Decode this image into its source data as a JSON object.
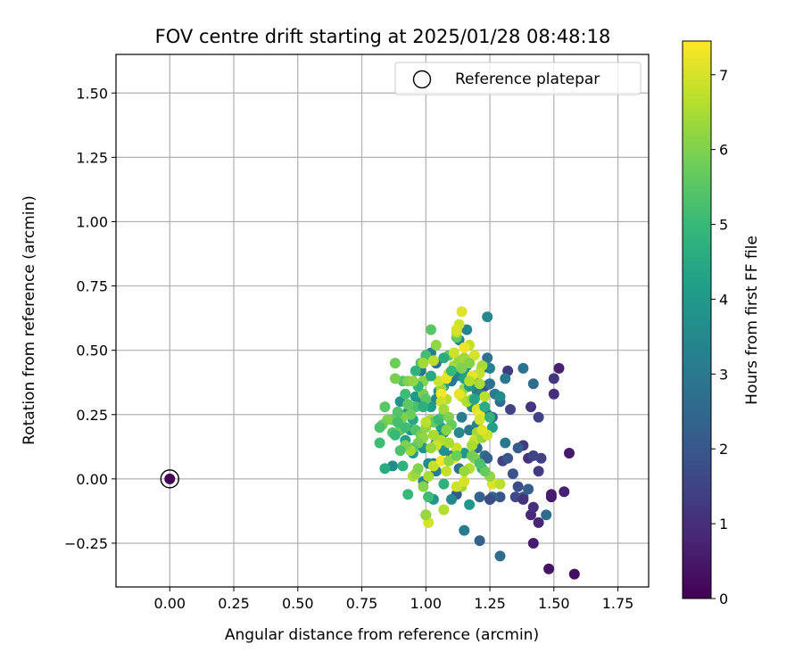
{
  "chart_data": {
    "type": "scatter",
    "title": "FOV centre drift starting at 2025/01/28 08:48:18",
    "xlabel": "Angular distance from reference (arcmin)",
    "ylabel": "Rotation from reference (arcmin)",
    "xlim": [
      -0.21,
      1.87
    ],
    "ylim": [
      -0.42,
      1.65
    ],
    "x_ticks": [
      0.0,
      0.25,
      0.5,
      0.75,
      1.0,
      1.25,
      1.5,
      1.75
    ],
    "x_tick_labels": [
      "0.00",
      "0.25",
      "0.50",
      "0.75",
      "1.00",
      "1.25",
      "1.50",
      "1.75"
    ],
    "y_ticks": [
      -0.25,
      0.0,
      0.25,
      0.5,
      0.75,
      1.0,
      1.25,
      1.5
    ],
    "y_tick_labels": [
      "−0.25",
      "0.00",
      "0.25",
      "0.50",
      "0.75",
      "1.00",
      "1.25",
      "1.50"
    ],
    "grid": true,
    "legend": {
      "placement": "top-right",
      "entries": [
        "Reference platepar"
      ]
    },
    "colorbar": {
      "label": "Hours from first FF file",
      "range": [
        0,
        7.45
      ],
      "ticks": [
        0,
        1,
        2,
        3,
        4,
        5,
        6,
        7
      ],
      "tick_labels": [
        "0",
        "1",
        "2",
        "3",
        "4",
        "5",
        "6",
        "7"
      ],
      "colormap": "viridis"
    },
    "reference_point": {
      "x": 0.0,
      "y": 0.0,
      "hours": 0.0
    },
    "points_note": "x, y in arcmin; c = hours from first FF file",
    "points": [
      [
        1.58,
        -0.37,
        0.3
      ],
      [
        1.48,
        -0.35,
        0.4
      ],
      [
        1.42,
        -0.25,
        0.6
      ],
      [
        1.44,
        -0.17,
        0.8
      ],
      [
        1.41,
        -0.14,
        0.9
      ],
      [
        1.42,
        -0.11,
        1.0
      ],
      [
        1.49,
        -0.07,
        0.5
      ],
      [
        1.49,
        -0.06,
        0.6
      ],
      [
        1.54,
        -0.05,
        0.7
      ],
      [
        1.47,
        -0.14,
        2.6
      ],
      [
        1.56,
        0.1,
        0.5
      ],
      [
        1.52,
        0.43,
        0.7
      ],
      [
        1.5,
        0.39,
        1.2
      ],
      [
        1.5,
        0.33,
        1.0
      ],
      [
        1.44,
        0.24,
        1.5
      ],
      [
        1.41,
        0.28,
        1.2
      ],
      [
        1.45,
        0.08,
        1.4
      ],
      [
        1.44,
        0.03,
        1.3
      ],
      [
        1.4,
        0.08,
        1.1
      ],
      [
        1.38,
        0.13,
        1.3
      ],
      [
        1.42,
        0.09,
        1.5
      ],
      [
        1.42,
        0.37,
        2.6
      ],
      [
        1.38,
        0.43,
        2.8
      ],
      [
        1.32,
        0.42,
        1.3
      ],
      [
        1.33,
        0.27,
        1.5
      ],
      [
        1.29,
        0.3,
        2.6
      ],
      [
        1.31,
        0.39,
        3.0
      ],
      [
        1.3,
        0.07,
        1.5
      ],
      [
        1.32,
        0.08,
        2.0
      ],
      [
        1.34,
        0.02,
        1.9
      ],
      [
        1.36,
        0.12,
        2.2
      ],
      [
        1.31,
        0.14,
        3.0
      ],
      [
        1.35,
        -0.07,
        1.6
      ],
      [
        1.38,
        -0.07,
        2.0
      ],
      [
        1.36,
        -0.03,
        1.8
      ],
      [
        1.38,
        -0.08,
        1.1
      ],
      [
        1.4,
        -0.04,
        2.2
      ],
      [
        1.29,
        -0.07,
        2.0
      ],
      [
        1.26,
        -0.07,
        2.4
      ],
      [
        1.25,
        -0.08,
        2.7
      ],
      [
        1.25,
        -0.08,
        1.7
      ],
      [
        1.21,
        -0.07,
        2.3
      ],
      [
        1.21,
        -0.24,
        2.3
      ],
      [
        1.15,
        -0.2,
        3.1
      ],
      [
        1.29,
        -0.3,
        2.6
      ],
      [
        1.12,
        -0.06,
        2.1
      ],
      [
        1.17,
        -0.1,
        3.9
      ],
      [
        1.1,
        -0.08,
        3.5
      ],
      [
        1.0,
        -0.14,
        3.9
      ],
      [
        1.01,
        -0.07,
        4.1
      ],
      [
        1.03,
        -0.08,
        3.9
      ],
      [
        0.99,
        -0.01,
        3.3
      ],
      [
        1.04,
        0.03,
        3.2
      ],
      [
        1.03,
        0.06,
        2.9
      ],
      [
        1.01,
        0.06,
        3.6
      ],
      [
        1.07,
        0.11,
        3.8
      ],
      [
        1.1,
        0.09,
        3.5
      ],
      [
        1.13,
        0.04,
        2.7
      ],
      [
        1.15,
        0.1,
        4.0
      ],
      [
        1.2,
        0.12,
        2.5
      ],
      [
        1.2,
        0.18,
        2.6
      ],
      [
        1.19,
        0.14,
        3.0
      ],
      [
        1.22,
        0.04,
        4.5
      ],
      [
        1.23,
        0.09,
        2.8
      ],
      [
        1.24,
        0.08,
        2.3
      ],
      [
        1.24,
        0.25,
        2.4
      ],
      [
        1.26,
        0.24,
        2.3
      ],
      [
        1.23,
        0.36,
        2.0
      ],
      [
        1.24,
        0.47,
        2.8
      ],
      [
        1.25,
        0.43,
        3.3
      ],
      [
        1.25,
        0.37,
        2.8
      ],
      [
        1.27,
        0.33,
        3.1
      ],
      [
        1.29,
        0.32,
        3.6
      ],
      [
        1.22,
        0.43,
        2.6
      ],
      [
        1.21,
        0.33,
        2.9
      ],
      [
        1.2,
        0.34,
        3.2
      ],
      [
        1.21,
        0.27,
        3.3
      ],
      [
        1.14,
        0.24,
        3.1
      ],
      [
        1.13,
        0.18,
        3.5
      ],
      [
        1.17,
        0.19,
        3.0
      ],
      [
        1.2,
        0.21,
        3.3
      ],
      [
        1.18,
        0.28,
        3.7
      ],
      [
        1.19,
        0.4,
        3.3
      ],
      [
        1.16,
        0.44,
        3.6
      ],
      [
        1.15,
        0.41,
        3.8
      ],
      [
        1.12,
        0.4,
        3.4
      ],
      [
        1.1,
        0.38,
        3.0
      ],
      [
        1.07,
        0.36,
        4.2
      ],
      [
        1.05,
        0.34,
        3.8
      ],
      [
        1.04,
        0.31,
        3.5
      ],
      [
        1.04,
        0.45,
        2.7
      ],
      [
        1.02,
        0.49,
        3.2
      ],
      [
        0.98,
        0.42,
        3.0
      ],
      [
        0.99,
        0.38,
        3.5
      ],
      [
        0.96,
        0.32,
        4.0
      ],
      [
        0.98,
        0.29,
        3.6
      ],
      [
        1.02,
        0.28,
        4.1
      ],
      [
        1.04,
        0.22,
        3.7
      ],
      [
        1.06,
        0.2,
        4.3
      ],
      [
        1.07,
        0.18,
        3.9
      ],
      [
        1.04,
        0.14,
        3.5
      ],
      [
        0.99,
        0.12,
        3.8
      ],
      [
        0.95,
        0.1,
        4.0
      ],
      [
        0.92,
        0.15,
        4.2
      ],
      [
        0.94,
        0.19,
        3.8
      ],
      [
        0.95,
        0.23,
        4.4
      ],
      [
        0.93,
        0.26,
        4.1
      ],
      [
        0.9,
        0.3,
        3.8
      ],
      [
        0.87,
        0.05,
        3.6
      ],
      [
        0.84,
        0.04,
        4.6
      ],
      [
        0.91,
        0.05,
        4.8
      ],
      [
        0.93,
        -0.06,
        5.0
      ],
      [
        1.01,
        -0.07,
        5.1
      ],
      [
        1.07,
        -0.02,
        4.7
      ],
      [
        1.13,
        0.54,
        3.3
      ],
      [
        1.16,
        0.58,
        3.4
      ],
      [
        1.24,
        0.63,
        3.5
      ],
      [
        1.12,
        0.55,
        5.6
      ],
      [
        1.09,
        0.48,
        5.6
      ],
      [
        1.04,
        0.52,
        6.2
      ],
      [
        1.02,
        0.58,
        5.5
      ],
      [
        1.0,
        0.48,
        5.2
      ],
      [
        0.98,
        0.45,
        5.4
      ],
      [
        0.96,
        0.42,
        4.8
      ],
      [
        0.91,
        0.38,
        5.4
      ],
      [
        0.88,
        0.39,
        5.9
      ],
      [
        0.88,
        0.45,
        5.8
      ],
      [
        0.93,
        0.38,
        6.0
      ],
      [
        0.99,
        0.38,
        6.1
      ],
      [
        0.99,
        0.33,
        5.9
      ],
      [
        1.0,
        0.31,
        5.5
      ],
      [
        0.96,
        0.28,
        5.3
      ],
      [
        0.93,
        0.29,
        5.6
      ],
      [
        0.94,
        0.25,
        5.8
      ],
      [
        0.91,
        0.24,
        6.0
      ],
      [
        0.89,
        0.26,
        5.4
      ],
      [
        0.87,
        0.23,
        5.7
      ],
      [
        0.85,
        0.23,
        6.0
      ],
      [
        0.84,
        0.28,
        5.5
      ],
      [
        0.83,
        0.21,
        5.8
      ],
      [
        0.82,
        0.2,
        5.3
      ],
      [
        0.82,
        0.14,
        5.1
      ],
      [
        0.87,
        0.18,
        5.4
      ],
      [
        0.9,
        0.19,
        5.7
      ],
      [
        0.92,
        0.2,
        5.1
      ],
      [
        0.96,
        0.19,
        5.4
      ],
      [
        0.98,
        0.17,
        5.9
      ],
      [
        1.0,
        0.2,
        6.2
      ],
      [
        1.02,
        0.23,
        6.4
      ],
      [
        1.03,
        0.22,
        5.7
      ],
      [
        1.05,
        0.23,
        5.0
      ],
      [
        1.07,
        0.25,
        5.3
      ],
      [
        1.08,
        0.31,
        6.6
      ],
      [
        1.06,
        0.35,
        6.3
      ],
      [
        1.05,
        0.38,
        6.9
      ],
      [
        1.09,
        0.41,
        6.7
      ],
      [
        1.11,
        0.44,
        6.5
      ],
      [
        1.13,
        0.46,
        6.2
      ],
      [
        1.14,
        0.43,
        6.0
      ],
      [
        1.15,
        0.47,
        6.4
      ],
      [
        1.17,
        0.52,
        6.8
      ],
      [
        1.19,
        0.48,
        7.0
      ],
      [
        1.17,
        0.45,
        6.1
      ],
      [
        1.15,
        0.35,
        6.3
      ],
      [
        1.14,
        0.32,
        6.8
      ],
      [
        1.13,
        0.33,
        7.2
      ],
      [
        1.16,
        0.3,
        6.6
      ],
      [
        1.18,
        0.31,
        6.2
      ],
      [
        1.2,
        0.27,
        7.1
      ],
      [
        1.21,
        0.25,
        7.3
      ],
      [
        1.21,
        0.23,
        7.0
      ],
      [
        1.2,
        0.18,
        6.4
      ],
      [
        1.19,
        0.15,
        6.8
      ],
      [
        1.18,
        0.13,
        6.5
      ],
      [
        1.22,
        0.16,
        6.3
      ],
      [
        1.23,
        0.32,
        6.7
      ],
      [
        1.21,
        0.37,
        6.5
      ],
      [
        1.13,
        0.6,
        6.9
      ],
      [
        1.14,
        0.65,
        7.1
      ],
      [
        1.15,
        0.51,
        7.3
      ],
      [
        1.12,
        0.57,
        6.7
      ],
      [
        1.08,
        0.39,
        7.2
      ],
      [
        1.06,
        0.33,
        7.4
      ],
      [
        1.06,
        0.3,
        6.9
      ],
      [
        1.07,
        0.27,
        6.4
      ],
      [
        1.09,
        0.24,
        6.0
      ],
      [
        1.1,
        0.21,
        5.7
      ],
      [
        1.08,
        0.19,
        6.1
      ],
      [
        1.06,
        0.15,
        6.6
      ],
      [
        1.04,
        0.13,
        6.9
      ],
      [
        1.02,
        0.12,
        6.3
      ],
      [
        1.03,
        0.17,
        6.5
      ],
      [
        1.0,
        0.22,
        6.7
      ],
      [
        0.99,
        0.16,
        6.2
      ],
      [
        0.97,
        0.14,
        5.9
      ],
      [
        0.95,
        0.12,
        5.5
      ],
      [
        0.94,
        0.11,
        6.4
      ],
      [
        0.92,
        0.13,
        6.0
      ],
      [
        0.9,
        0.11,
        5.3
      ],
      [
        0.88,
        0.17,
        5.0
      ],
      [
        0.89,
        0.22,
        5.2
      ],
      [
        0.92,
        0.33,
        5.1
      ],
      [
        0.97,
        0.36,
        4.9
      ],
      [
        0.99,
        0.28,
        4.7
      ],
      [
        1.02,
        0.4,
        4.5
      ],
      [
        1.07,
        0.47,
        4.6
      ],
      [
        1.1,
        0.42,
        5.0
      ],
      [
        1.15,
        0.39,
        4.3
      ],
      [
        1.17,
        0.36,
        4.0
      ],
      [
        1.19,
        0.31,
        4.4
      ],
      [
        1.23,
        0.28,
        4.6
      ],
      [
        1.25,
        0.24,
        4.8
      ],
      [
        1.26,
        0.2,
        4.2
      ],
      [
        1.14,
        -0.03,
        6.4
      ],
      [
        1.12,
        -0.03,
        6.9
      ],
      [
        1.15,
        -0.01,
        7.0
      ],
      [
        1.17,
        0.04,
        6.6
      ],
      [
        1.15,
        0.03,
        6.3
      ],
      [
        1.19,
        0.08,
        6.0
      ],
      [
        1.03,
        0.05,
        6.8
      ],
      [
        1.01,
        0.01,
        6.5
      ],
      [
        0.99,
        -0.03,
        6.1
      ],
      [
        0.95,
        0.01,
        6.6
      ],
      [
        0.96,
        0.02,
        6.3
      ],
      [
        0.97,
        0.04,
        6.0
      ],
      [
        1.07,
        -0.12,
        6.6
      ],
      [
        1.01,
        -0.17,
        7.0
      ],
      [
        1.0,
        -0.14,
        6.3
      ],
      [
        1.26,
        -0.02,
        7.1
      ],
      [
        1.29,
        -0.02,
        6.7
      ],
      [
        1.25,
        0.01,
        6.2
      ],
      [
        1.23,
        0.03,
        5.7
      ],
      [
        1.21,
        0.06,
        5.3
      ],
      [
        1.18,
        0.09,
        5.9
      ],
      [
        1.11,
        0.08,
        7.4
      ],
      [
        1.12,
        0.12,
        6.9
      ],
      [
        1.09,
        0.14,
        6.5
      ],
      [
        1.03,
        0.46,
        6.7
      ],
      [
        0.95,
        0.38,
        6.2
      ],
      [
        0.99,
        0.45,
        6.4
      ],
      [
        1.11,
        0.49,
        6.9
      ],
      [
        1.12,
        0.58,
        7.0
      ],
      [
        1.22,
        0.44,
        6.5
      ],
      [
        1.21,
        0.41,
        6.8
      ],
      [
        1.18,
        0.4,
        7.2
      ],
      [
        1.17,
        0.38,
        6.6
      ],
      [
        1.24,
        0.17,
        6.9
      ],
      [
        1.22,
        0.19,
        7.1
      ],
      [
        1.06,
        0.07,
        7.3
      ],
      [
        1.08,
        0.03,
        6.8
      ],
      [
        1.09,
        0.07,
        6.2
      ],
      [
        1.12,
        0.09,
        5.8
      ]
    ]
  }
}
